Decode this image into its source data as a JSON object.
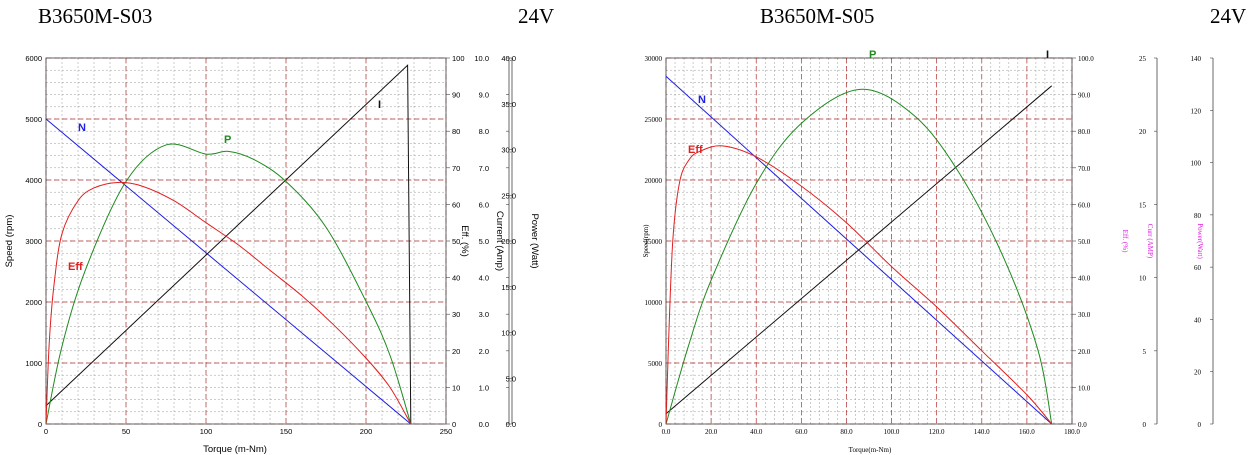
{
  "headers": {
    "left_model": "B3650M-S03",
    "left_voltage": "24V",
    "right_model": "B3650M-S05",
    "right_voltage": "24V"
  },
  "colors": {
    "N": "#1f1fe0",
    "Eff": "#e01f1f",
    "P": "#1f8a1f",
    "I": "#111111",
    "grid_major": "#b03030",
    "grid_minor": "#9a9a9a",
    "right_aux_labels": "#e020e0"
  },
  "chart_data": [
    {
      "type": "line",
      "title": "B3650M-S03",
      "grid": true,
      "xlabel": "Torque (m-Nm)",
      "xlim": [
        0,
        250
      ],
      "xticks": [
        "0",
        "50",
        "100",
        "150",
        "200",
        "250"
      ],
      "axes": [
        {
          "label": "Speed (rpm)",
          "lim": [
            0,
            6000
          ],
          "ticks": [
            "0",
            "1000",
            "2000",
            "3000",
            "4000",
            "5000",
            "6000"
          ]
        },
        {
          "label": "Eff. (%)",
          "lim": [
            0,
            100
          ],
          "ticks": [
            "0",
            "10",
            "20",
            "30",
            "40",
            "50",
            "60",
            "70",
            "80",
            "90",
            "100"
          ]
        },
        {
          "label": "Current (Amp)",
          "lim": [
            0,
            10
          ],
          "ticks": [
            "0.0",
            "1.0",
            "2.0",
            "3.0",
            "4.0",
            "5.0",
            "6.0",
            "7.0",
            "8.0",
            "9.0",
            "10.0"
          ]
        },
        {
          "label": "Power (Watt)",
          "lim": [
            0,
            40
          ],
          "ticks": [
            "0.0",
            "5.0",
            "10.0",
            "15.0",
            "20.0",
            "25.0",
            "30.0",
            "35.0",
            "40.0"
          ]
        }
      ],
      "series": [
        {
          "name": "N",
          "axis": 0,
          "x": [
            0,
            228
          ],
          "y": [
            5000,
            0
          ]
        },
        {
          "name": "I",
          "axis": 2,
          "x": [
            0,
            226,
            228
          ],
          "y": [
            0.5,
            9.8,
            0
          ]
        },
        {
          "name": "P",
          "axis": 3,
          "x": [
            0,
            10,
            25,
            50,
            75,
            100,
            114,
            130,
            150,
            175,
            200,
            215,
            228
          ],
          "y": [
            0,
            8.5,
            17,
            26.5,
            30.5,
            29.5,
            29.8,
            28.9,
            26.5,
            21.5,
            13.4,
            7.5,
            0
          ]
        },
        {
          "name": "Eff",
          "axis": 1,
          "x": [
            0,
            2,
            5,
            10,
            20,
            30,
            45,
            60,
            80,
            100,
            120,
            140,
            160,
            180,
            200,
            215,
            228
          ],
          "y": [
            0,
            22,
            38,
            52,
            61,
            64.5,
            66,
            65,
            61,
            55,
            49,
            42,
            35,
            27,
            18,
            10,
            0
          ]
        }
      ]
    },
    {
      "type": "line",
      "title": "B3650M-S05",
      "grid": true,
      "xlabel": "Torque(m-Nm)",
      "xlim": [
        0,
        180
      ],
      "xticks": [
        "0.0",
        "20.0",
        "40.0",
        "60.0",
        "80.0",
        "100.0",
        "120.0",
        "140.0",
        "160.0",
        "180.0"
      ],
      "axes": [
        {
          "label": "Speed(rpm)",
          "lim": [
            0,
            30000
          ],
          "ticks": [
            "0",
            "5000",
            "10000",
            "15000",
            "20000",
            "25000",
            "30000"
          ]
        },
        {
          "label": "Eff. (%)",
          "lim": [
            0,
            100
          ],
          "ticks": [
            "0.0",
            "10.0",
            "20.0",
            "30.0",
            "40.0",
            "50.0",
            "60.0",
            "70.0",
            "80.0",
            "90.0",
            "100.0"
          ]
        },
        {
          "label": "Curr (AMP)",
          "lim": [
            0,
            25
          ],
          "ticks": [
            "0",
            "5",
            "10",
            "15",
            "20",
            "25"
          ]
        },
        {
          "label": "Power(Watt)",
          "lim": [
            0,
            140
          ],
          "ticks": [
            "0",
            "20",
            "40",
            "60",
            "80",
            "100",
            "120",
            "140"
          ]
        }
      ],
      "series": [
        {
          "name": "N",
          "axis": 0,
          "x": [
            0,
            171
          ],
          "y": [
            28500,
            0
          ]
        },
        {
          "name": "I",
          "axis": 2,
          "x": [
            0,
            171
          ],
          "y": [
            0.7,
            23.1
          ]
        },
        {
          "name": "P",
          "axis": 3,
          "x": [
            0,
            10,
            20,
            40,
            60,
            86,
            110,
            130,
            150,
            165,
            171
          ],
          "y": [
            0,
            30,
            55,
            92,
            115,
            128,
            118,
            96,
            63,
            28,
            0
          ]
        },
        {
          "name": "Eff",
          "axis": 1,
          "x": [
            0,
            1,
            3,
            6,
            10,
            15,
            25,
            40,
            60,
            80,
            100,
            120,
            140,
            160,
            171
          ],
          "y": [
            0,
            20,
            50,
            66,
            72,
            74.5,
            76,
            73,
            65,
            55,
            43,
            32,
            20,
            8,
            0
          ]
        }
      ]
    }
  ]
}
